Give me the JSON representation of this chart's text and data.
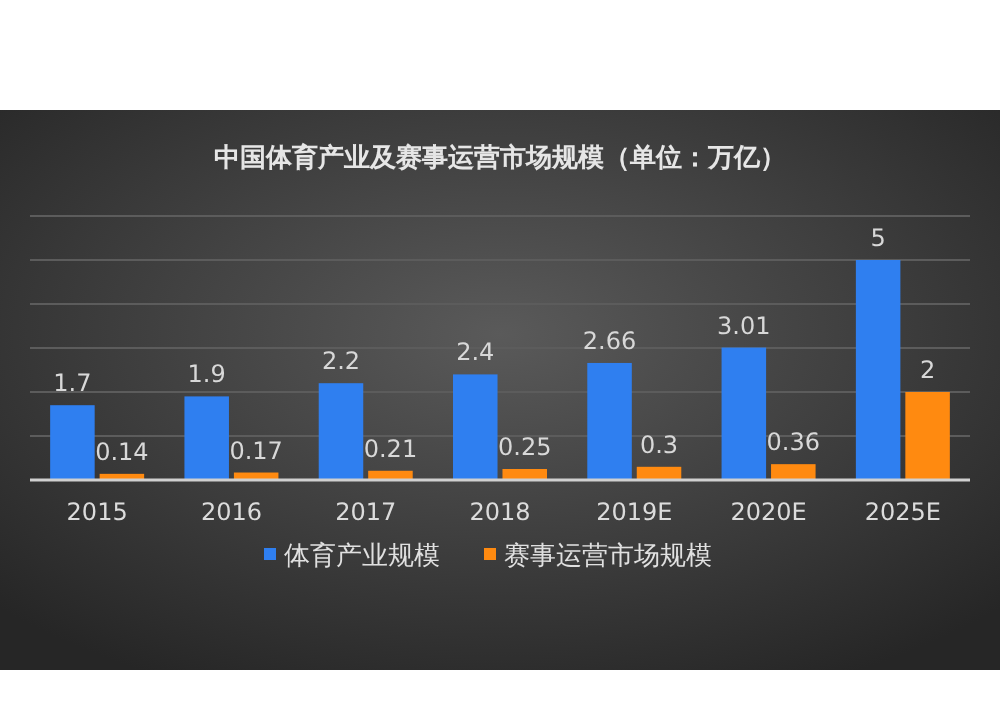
{
  "chart_data": {
    "type": "bar",
    "title": "中国体育产业及赛事运营市场规模（单位：万亿）",
    "categories": [
      "2015",
      "2016",
      "2017",
      "2018",
      "2019E",
      "2020E",
      "2025E"
    ],
    "series": [
      {
        "name": "体育产业规模",
        "color": "#2f7ff0",
        "values": [
          1.7,
          1.9,
          2.2,
          2.4,
          2.66,
          3.01,
          5
        ]
      },
      {
        "name": "赛事运营市场规模",
        "color": "#ff8a10",
        "values": [
          0.14,
          0.17,
          0.21,
          0.25,
          0.3,
          0.36,
          2
        ]
      }
    ],
    "ylim": [
      0,
      6
    ],
    "yticks": [
      {
        "value": 0,
        "label": null
      },
      {
        "value": 1,
        "label": null
      },
      {
        "value": 2,
        "label": null
      },
      {
        "value": 3,
        "label": null
      },
      {
        "value": 4,
        "label": null
      },
      {
        "value": 5,
        "label": null
      },
      {
        "value": 6,
        "label": null
      }
    ],
    "grid": "y",
    "tick_labels": "x",
    "data_labels": true,
    "legend": "bottom"
  }
}
